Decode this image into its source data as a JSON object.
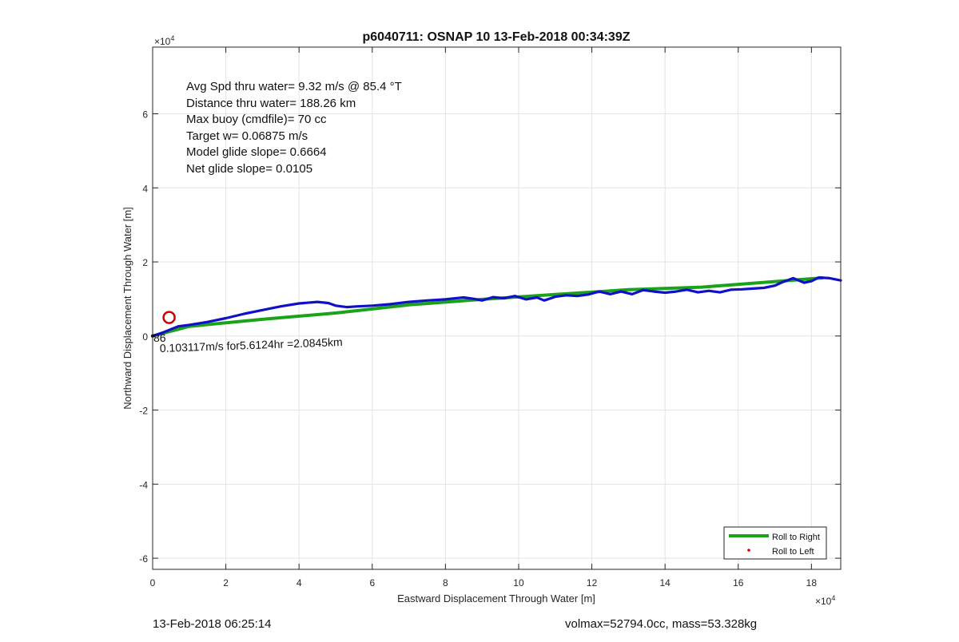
{
  "chart_data": {
    "type": "line",
    "title": "p6040711: OSNAP 10 13-Feb-2018 00:34:39Z",
    "xlabel": "Eastward Displacement Through Water [m]",
    "ylabel": "Northward Displacement Through Water [m]",
    "x_exponent_label": "×10",
    "x_exponent_power": "4",
    "y_exponent_label": "×10",
    "y_exponent_power": "4",
    "xlim": [
      0,
      18.8
    ],
    "ylim": [
      -6.3,
      7.8
    ],
    "x_ticks": [
      0,
      2,
      4,
      6,
      8,
      10,
      12,
      14,
      16,
      18
    ],
    "y_ticks": [
      -6,
      -4,
      -2,
      0,
      2,
      4,
      6
    ],
    "grid": true,
    "legend_position": "bottom-right",
    "legend": [
      {
        "label": "Roll to Right",
        "color": "#1aa31a",
        "marker": "line"
      },
      {
        "label": "Roll to Left",
        "color": "#e00000",
        "marker": "dot"
      }
    ],
    "annotations": [
      "Avg Spd thru water=  9.32 m/s @  85.4 °T",
      "Distance thru water= 188.26 km",
      "Max buoy (cmdfile)= 70 cc",
      "Target w= 0.06875 m/s",
      "Model glide slope= 0.6664",
      "Net glide slope= 0.0105"
    ],
    "current_label": "0.103117m/s for5.6124hr =2.0845km",
    "overlap_label": "86",
    "marker_circle": {
      "x": 0.45,
      "y": 0.5,
      "color": "#cc0000"
    },
    "series": [
      {
        "color": "#1aa31a",
        "x": [
          0,
          1,
          3,
          5,
          7,
          9,
          11,
          13,
          15,
          17,
          18.3
        ],
        "y": [
          0,
          0.26,
          0.45,
          0.62,
          0.84,
          0.99,
          1.12,
          1.25,
          1.32,
          1.47,
          1.57
        ]
      },
      {
        "color": "#1010c8",
        "x": [
          0,
          0.3,
          0.5,
          0.7,
          1.0,
          1.5,
          2.0,
          2.5,
          3.0,
          3.5,
          4.0,
          4.5,
          4.8,
          5.0,
          5.3,
          5.6,
          6.0,
          6.5,
          7.0,
          7.5,
          8.0,
          8.5,
          8.8,
          9.0,
          9.3,
          9.6,
          9.9,
          10.2,
          10.5,
          10.7,
          11.0,
          11.3,
          11.6,
          11.9,
          12.2,
          12.5,
          12.8,
          13.1,
          13.4,
          13.7,
          14.0,
          14.3,
          14.6,
          14.9,
          15.2,
          15.5,
          15.8,
          16.1,
          16.4,
          16.7,
          17.0,
          17.2,
          17.5,
          17.8,
          18.0,
          18.2,
          18.5,
          18.8
        ],
        "y": [
          0.0,
          0.1,
          0.18,
          0.26,
          0.3,
          0.38,
          0.48,
          0.6,
          0.7,
          0.8,
          0.88,
          0.92,
          0.89,
          0.82,
          0.78,
          0.8,
          0.82,
          0.86,
          0.92,
          0.96,
          0.99,
          1.04,
          1.0,
          0.96,
          1.05,
          1.02,
          1.08,
          0.99,
          1.04,
          0.96,
          1.06,
          1.1,
          1.08,
          1.12,
          1.2,
          1.13,
          1.2,
          1.13,
          1.24,
          1.2,
          1.17,
          1.2,
          1.25,
          1.18,
          1.22,
          1.18,
          1.25,
          1.26,
          1.28,
          1.3,
          1.36,
          1.45,
          1.56,
          1.44,
          1.48,
          1.58,
          1.56,
          1.5
        ]
      }
    ]
  },
  "footer": {
    "left_text": "13-Feb-2018 06:25:14",
    "right_text": "volmax=52794.0cc, mass=53.328kg"
  }
}
